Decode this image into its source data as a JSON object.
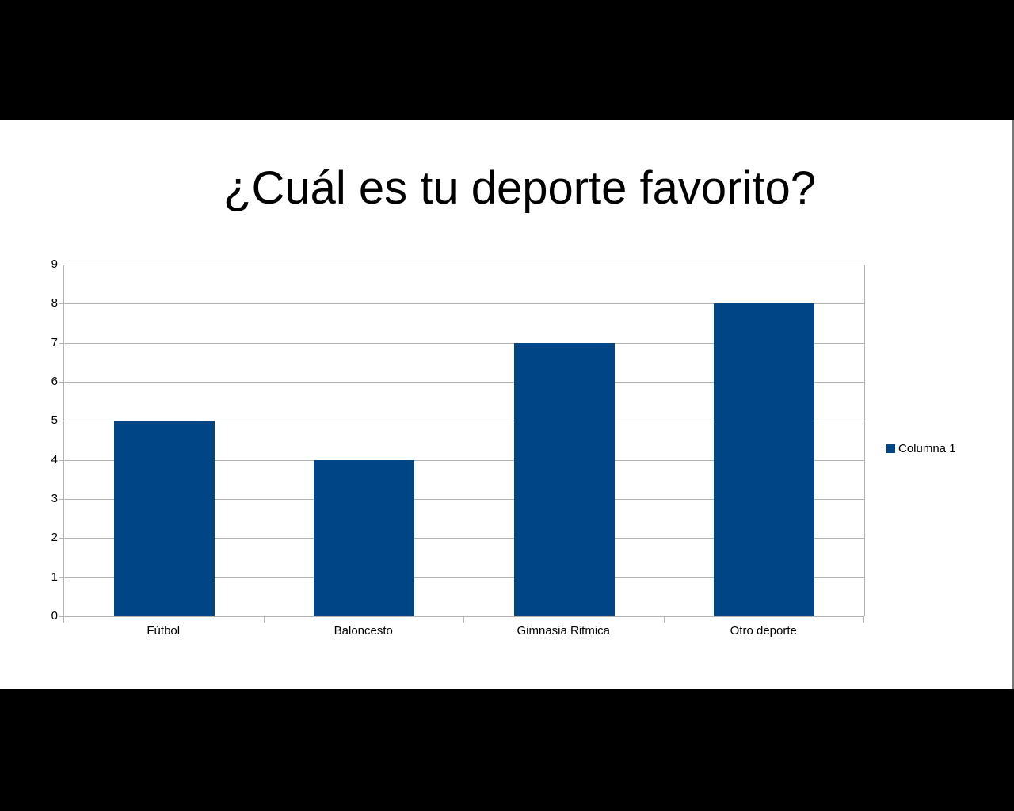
{
  "slide": {
    "title": "¿Cuál es tu deporte favorito?"
  },
  "chart_data": {
    "type": "bar",
    "title": "¿Cuál es tu deporte favorito?",
    "categories": [
      "Fútbol",
      "Baloncesto",
      "Gimnasia Ritmica",
      "Otro deporte"
    ],
    "series": [
      {
        "name": "Columna 1",
        "values": [
          5,
          4,
          7,
          8
        ],
        "color": "#004586"
      }
    ],
    "xlabel": "",
    "ylabel": "",
    "ylim": [
      0,
      9
    ],
    "yticks": [
      "0",
      "1",
      "2",
      "3",
      "4",
      "5",
      "6",
      "7",
      "8",
      "9"
    ],
    "grid": true,
    "legend_position": "right"
  }
}
